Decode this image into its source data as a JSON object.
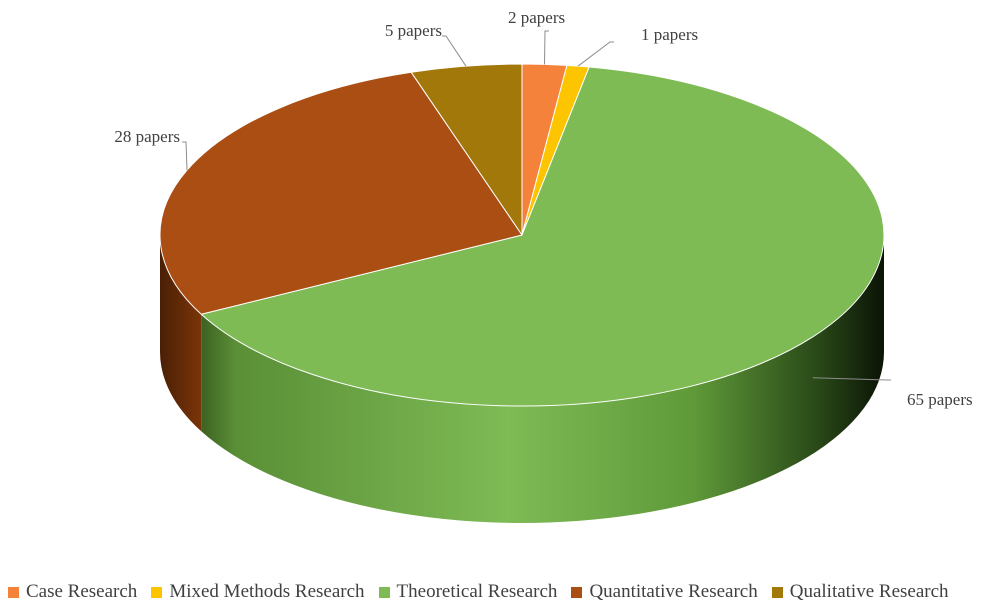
{
  "chart_data": {
    "type": "pie",
    "style": "3d",
    "categories": [
      "Case Research",
      "Mixed Methods Research",
      "Theoretical Research",
      "Quantitative Research",
      "Qualitative Research"
    ],
    "values": [
      2,
      1,
      65,
      28,
      5
    ],
    "data_labels": [
      "2 papers",
      "1 papers",
      "65 papers",
      "28 papers",
      "5 papers"
    ],
    "colors": [
      "#f4823a",
      "#fdc500",
      "#7ebb55",
      "#ab4e14",
      "#a2780a"
    ],
    "legend_position": "bottom",
    "title": ""
  }
}
